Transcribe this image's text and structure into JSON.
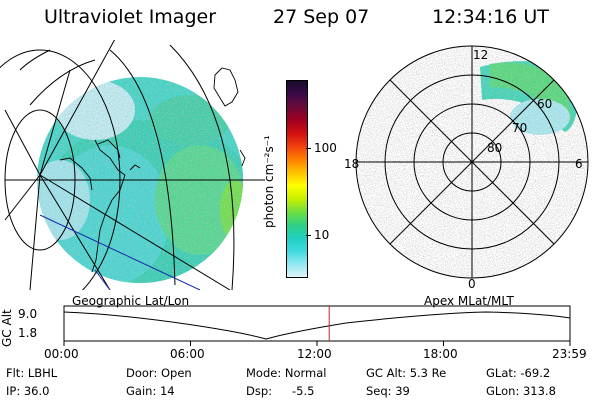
{
  "header": {
    "title": "Ultraviolet Imager",
    "date": "27 Sep 07",
    "time": "12:34:16 UT"
  },
  "colorbar": {
    "unit_label": "photon cm⁻²s⁻¹",
    "ticks": [
      "100",
      "10"
    ],
    "colors": [
      "#1a0a2a",
      "#3b0a4a",
      "#6b0a3a",
      "#a00020",
      "#d01010",
      "#f04010",
      "#ff8000",
      "#ffc000",
      "#ffff00",
      "#c8f000",
      "#70e040",
      "#30d080",
      "#20d0c0",
      "#40d8e0",
      "#90e8f0",
      "#e0f4f8"
    ]
  },
  "geo_map": {
    "label": "Geographic Lat/Lon"
  },
  "polar_map": {
    "label": "Apex  MLat/MLT",
    "mlt_labels": {
      "top": "12",
      "left": "18",
      "right": "6",
      "bottom": "0"
    },
    "lat_labels": [
      "60",
      "70",
      "80"
    ]
  },
  "altitude_plot": {
    "ylabel": "GC Alt",
    "yticks": [
      "9.0",
      "1.8"
    ],
    "xticks": [
      "00:00",
      "06:00",
      "12:00",
      "18:00",
      "23:59"
    ],
    "current_time_hours": 12.57
  },
  "info": {
    "flt": "Flt: LBHL",
    "ip": "IP: 36.0",
    "door": "Door: Open",
    "gain": "Gain: 14",
    "mode": "Mode: Normal",
    "dsp_label": "Dsp:",
    "dsp_value": "-5.5",
    "gc_alt": "GC Alt: 5.3 Re",
    "seq": "Seq: 39",
    "glat": "GLat: -69.2",
    "glon": "GLon: 313.8"
  }
}
